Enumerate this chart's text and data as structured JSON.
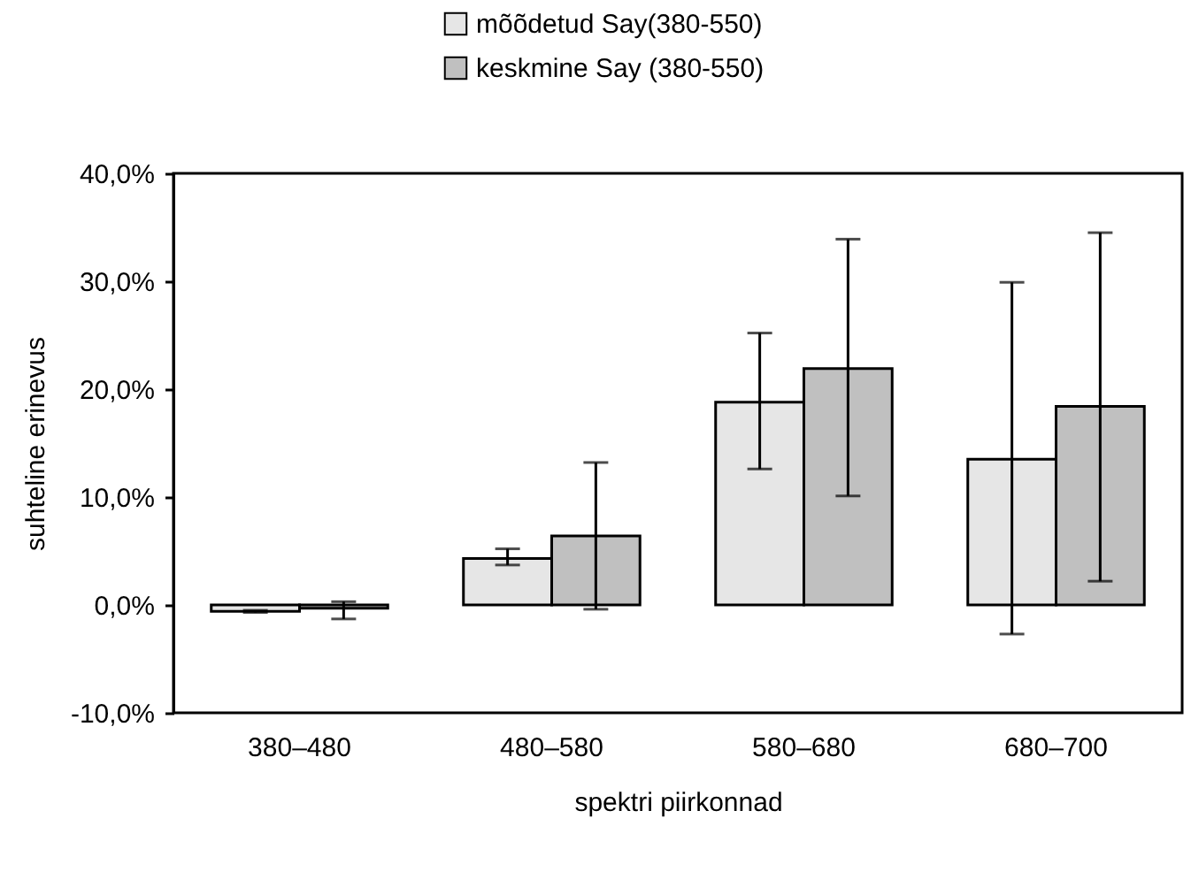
{
  "chart_data": {
    "type": "bar",
    "xlabel": "spektri piirkonnad",
    "ylabel": "suhteline erinevus",
    "categories": [
      "380–480",
      "480–580",
      "580–680",
      "680–700"
    ],
    "series": [
      {
        "name": "mõõdetud Say(380-550)",
        "color": "#e6e6e6",
        "values": [
          -0.6,
          4.3,
          18.8,
          13.5
        ],
        "errors": [
          [
            -0.7,
            -0.5
          ],
          [
            3.7,
            5.2
          ],
          [
            12.6,
            25.2
          ],
          [
            -2.7,
            29.9
          ]
        ]
      },
      {
        "name": "keskmine Say (380-550)",
        "color": "#c0c0c0",
        "values": [
          -0.3,
          6.4,
          21.9,
          18.4
        ],
        "errors": [
          [
            -1.3,
            0.3
          ],
          [
            -0.4,
            13.2
          ],
          [
            10.1,
            33.9
          ],
          [
            2.2,
            34.5
          ]
        ]
      }
    ],
    "ylim": [
      -10,
      40
    ],
    "yticks": [
      {
        "value": -10,
        "label": "-10,0%"
      },
      {
        "value": 0,
        "label": "0,0%"
      },
      {
        "value": 10,
        "label": "10,0%"
      },
      {
        "value": 20,
        "label": "20,0%"
      },
      {
        "value": 30,
        "label": "30,0%"
      },
      {
        "value": 40,
        "label": "40,0%"
      }
    ],
    "grid": false,
    "legend": "top"
  }
}
